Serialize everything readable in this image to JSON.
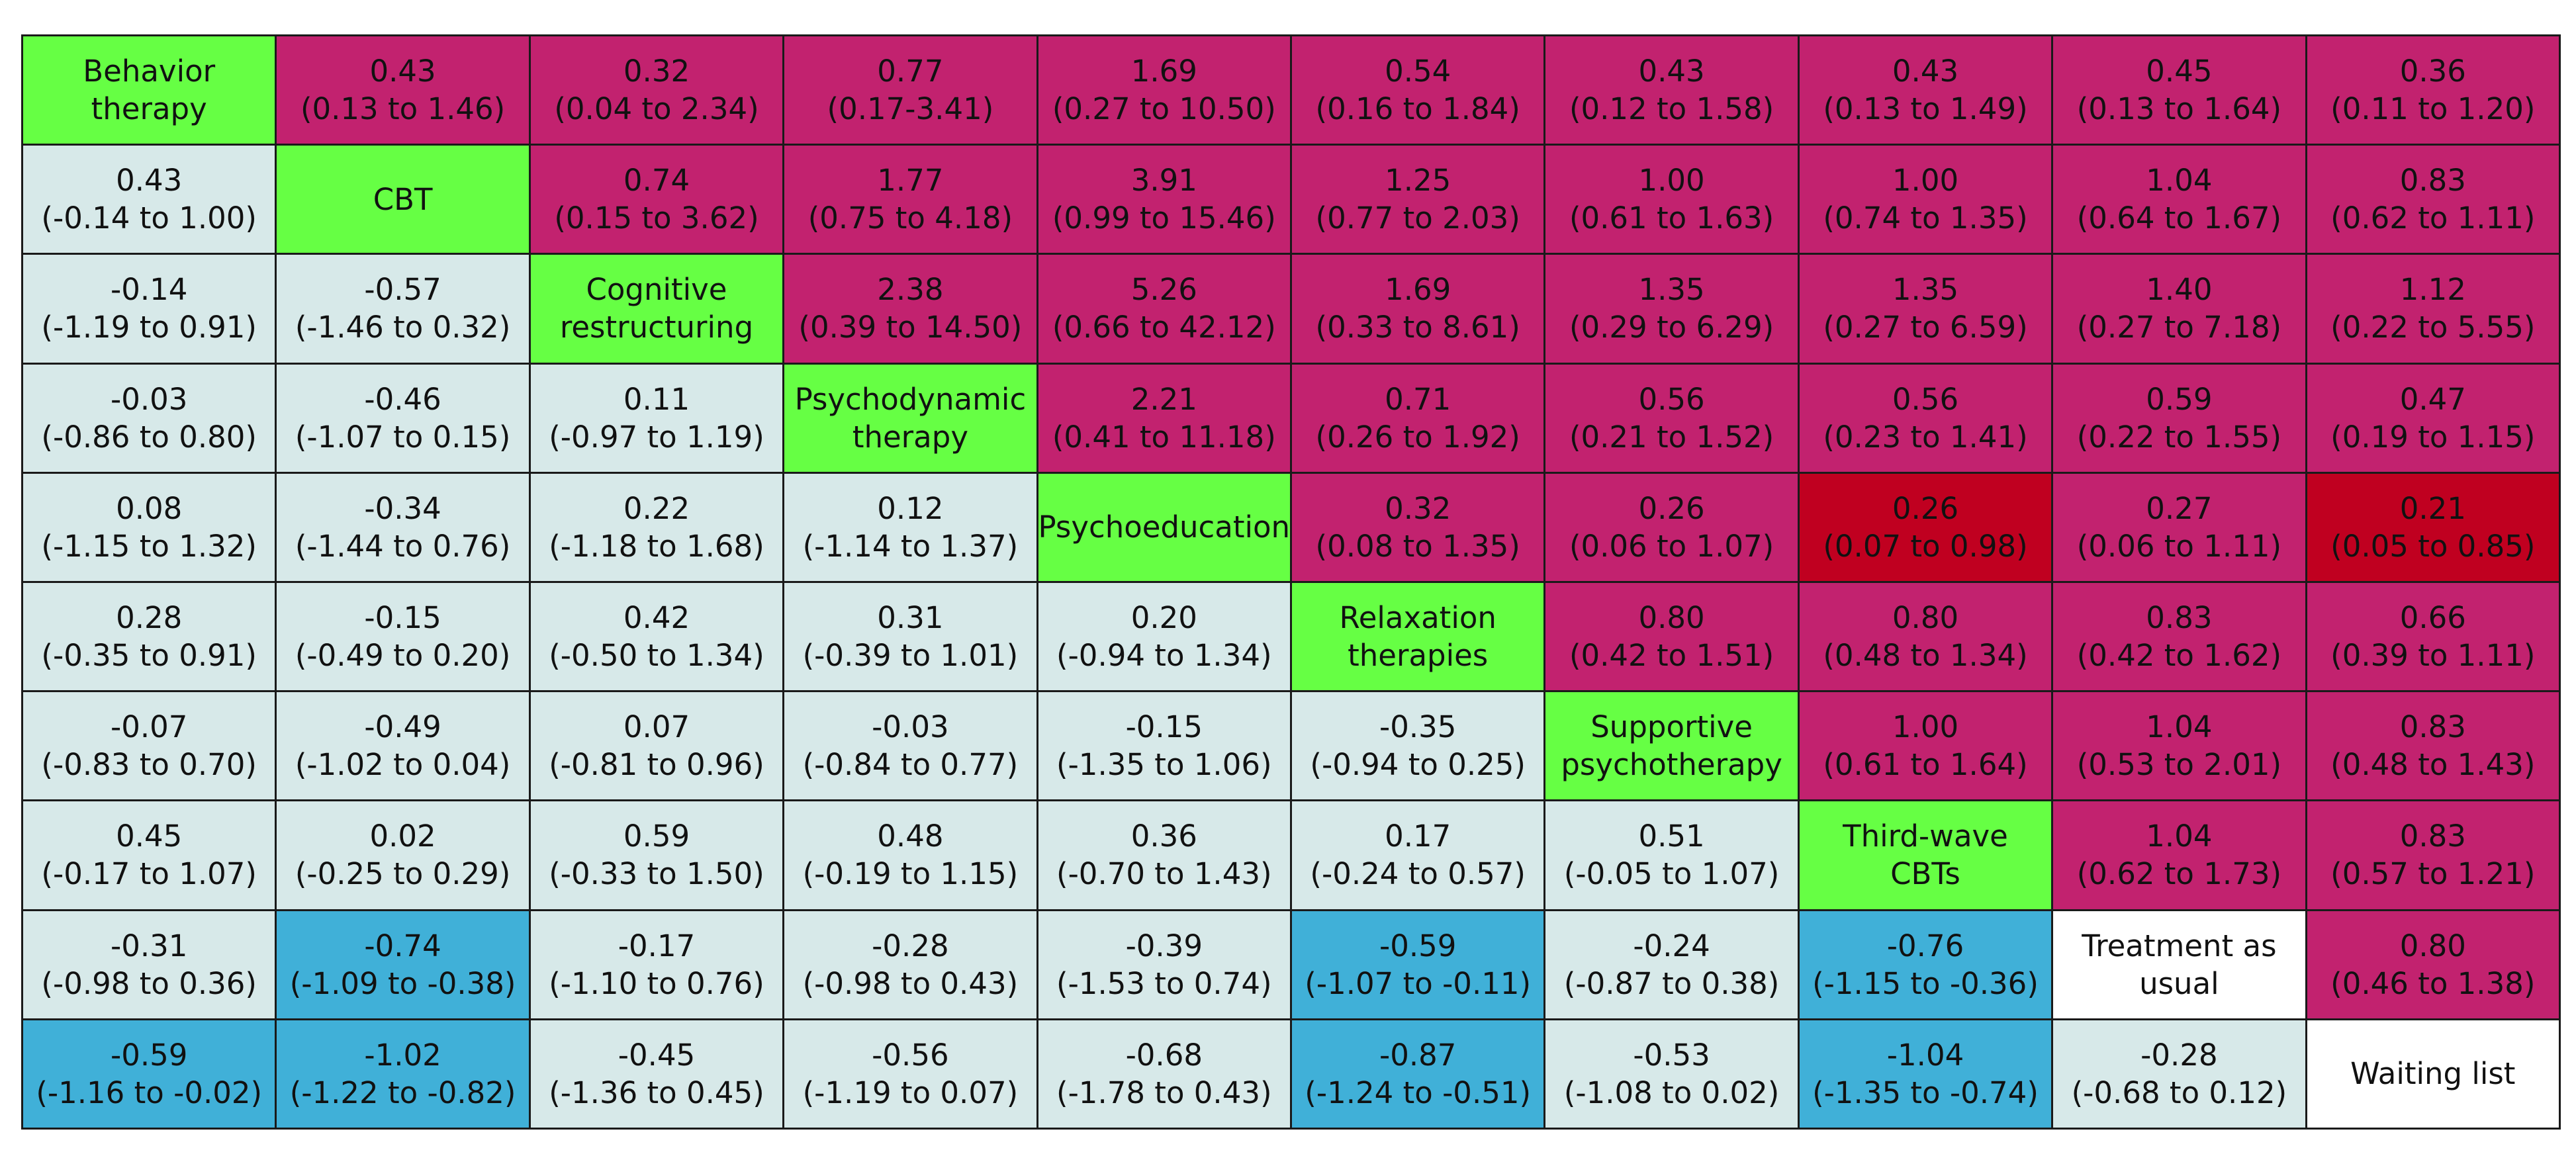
{
  "colors": {
    "diagonal": "#66ff44",
    "upper": "#c2226f",
    "upper_significant": "#c00020",
    "lower": "#d7e9e9",
    "lower_significant": "#40b0d8",
    "reference": "#ffffff"
  },
  "chart_data": {
    "type": "table",
    "treatments": [
      "Behavior therapy",
      "CBT",
      "Cognitive restructuring",
      "Psychodynamic therapy",
      "Psychoeducation",
      "Relaxation therapies",
      "Supportive psychotherapy",
      "Third-wave CBTs",
      "Treatment as usual",
      "Waiting list"
    ],
    "rows": [
      [
        {
          "kind": "diagonal",
          "label": "Behavior therapy"
        },
        {
          "kind": "upper",
          "value": "0.43",
          "ci": "(0.13 to 1.46)"
        },
        {
          "kind": "upper",
          "value": "0.32",
          "ci": "(0.04 to 2.34)"
        },
        {
          "kind": "upper",
          "value": "0.77",
          "ci": "(0.17-3.41)"
        },
        {
          "kind": "upper",
          "value": "1.69",
          "ci": "(0.27 to 10.50)"
        },
        {
          "kind": "upper",
          "value": "0.54",
          "ci": "(0.16 to 1.84)"
        },
        {
          "kind": "upper",
          "value": "0.43",
          "ci": "(0.12 to 1.58)"
        },
        {
          "kind": "upper",
          "value": "0.43",
          "ci": "(0.13 to 1.49)"
        },
        {
          "kind": "upper",
          "value": "0.45",
          "ci": "(0.13 to 1.64)"
        },
        {
          "kind": "upper",
          "value": "0.36",
          "ci": "(0.11 to 1.20)"
        }
      ],
      [
        {
          "kind": "lower",
          "value": "0.43",
          "ci": "(-0.14 to 1.00)"
        },
        {
          "kind": "diagonal",
          "label": "CBT"
        },
        {
          "kind": "upper",
          "value": "0.74",
          "ci": "(0.15 to 3.62)"
        },
        {
          "kind": "upper",
          "value": "1.77",
          "ci": "(0.75 to 4.18)"
        },
        {
          "kind": "upper",
          "value": "3.91",
          "ci": "(0.99 to 15.46)"
        },
        {
          "kind": "upper",
          "value": "1.25",
          "ci": "(0.77 to 2.03)"
        },
        {
          "kind": "upper",
          "value": "1.00",
          "ci": "(0.61 to 1.63)"
        },
        {
          "kind": "upper",
          "value": "1.00",
          "ci": "(0.74 to 1.35)"
        },
        {
          "kind": "upper",
          "value": "1.04",
          "ci": "(0.64 to 1.67)"
        },
        {
          "kind": "upper",
          "value": "0.83",
          "ci": "(0.62 to 1.11)"
        }
      ],
      [
        {
          "kind": "lower",
          "value": "-0.14",
          "ci": "(-1.19 to 0.91)"
        },
        {
          "kind": "lower",
          "value": "-0.57",
          "ci": "(-1.46 to 0.32)"
        },
        {
          "kind": "diagonal",
          "label": "Cognitive restructuring"
        },
        {
          "kind": "upper",
          "value": "2.38",
          "ci": "(0.39 to 14.50)"
        },
        {
          "kind": "upper",
          "value": "5.26",
          "ci": "(0.66 to 42.12)"
        },
        {
          "kind": "upper",
          "value": "1.69",
          "ci": "(0.33 to 8.61)"
        },
        {
          "kind": "upper",
          "value": "1.35",
          "ci": "(0.29 to 6.29)"
        },
        {
          "kind": "upper",
          "value": "1.35",
          "ci": "(0.27 to 6.59)"
        },
        {
          "kind": "upper",
          "value": "1.40",
          "ci": "(0.27 to 7.18)"
        },
        {
          "kind": "upper",
          "value": "1.12",
          "ci": "(0.22 to 5.55)"
        }
      ],
      [
        {
          "kind": "lower",
          "value": "-0.03",
          "ci": "(-0.86 to 0.80)"
        },
        {
          "kind": "lower",
          "value": "-0.46",
          "ci": "(-1.07 to 0.15)"
        },
        {
          "kind": "lower",
          "value": "0.11",
          "ci": "(-0.97 to 1.19)"
        },
        {
          "kind": "diagonal",
          "label": "Psychodynamic therapy"
        },
        {
          "kind": "upper",
          "value": "2.21",
          "ci": "(0.41 to 11.18)"
        },
        {
          "kind": "upper",
          "value": "0.71",
          "ci": "(0.26 to 1.92)"
        },
        {
          "kind": "upper",
          "value": "0.56",
          "ci": "(0.21 to 1.52)"
        },
        {
          "kind": "upper",
          "value": "0.56",
          "ci": "(0.23 to 1.41)"
        },
        {
          "kind": "upper",
          "value": "0.59",
          "ci": "(0.22 to 1.55)"
        },
        {
          "kind": "upper",
          "value": "0.47",
          "ci": "(0.19 to 1.15)"
        }
      ],
      [
        {
          "kind": "lower",
          "value": "0.08",
          "ci": "(-1.15 to 1.32)"
        },
        {
          "kind": "lower",
          "value": "-0.34",
          "ci": "(-1.44 to 0.76)"
        },
        {
          "kind": "lower",
          "value": "0.22",
          "ci": "(-1.18 to 1.68)"
        },
        {
          "kind": "lower",
          "value": "0.12",
          "ci": "(-1.14 to 1.37)"
        },
        {
          "kind": "diagonal",
          "label": "Psychoeducation"
        },
        {
          "kind": "upper",
          "value": "0.32",
          "ci": "(0.08 to 1.35)"
        },
        {
          "kind": "upper",
          "value": "0.26",
          "ci": "(0.06 to 1.07)"
        },
        {
          "kind": "upper_significant",
          "value": "0.26",
          "ci": "(0.07 to 0.98)"
        },
        {
          "kind": "upper",
          "value": "0.27",
          "ci": "(0.06 to 1.11)"
        },
        {
          "kind": "upper_significant",
          "value": "0.21",
          "ci": "(0.05 to 0.85)"
        }
      ],
      [
        {
          "kind": "lower",
          "value": "0.28",
          "ci": "(-0.35 to 0.91)"
        },
        {
          "kind": "lower",
          "value": "-0.15",
          "ci": "(-0.49 to 0.20)"
        },
        {
          "kind": "lower",
          "value": "0.42",
          "ci": "(-0.50 to 1.34)"
        },
        {
          "kind": "lower",
          "value": "0.31",
          "ci": "(-0.39 to 1.01)"
        },
        {
          "kind": "lower",
          "value": "0.20",
          "ci": "(-0.94 to 1.34)"
        },
        {
          "kind": "diagonal",
          "label": "Relaxation therapies"
        },
        {
          "kind": "upper",
          "value": "0.80",
          "ci": "(0.42 to 1.51)"
        },
        {
          "kind": "upper",
          "value": "0.80",
          "ci": "(0.48 to 1.34)"
        },
        {
          "kind": "upper",
          "value": "0.83",
          "ci": "(0.42 to 1.62)"
        },
        {
          "kind": "upper",
          "value": "0.66",
          "ci": "(0.39 to 1.11)"
        }
      ],
      [
        {
          "kind": "lower",
          "value": "-0.07",
          "ci": "(-0.83 to 0.70)"
        },
        {
          "kind": "lower",
          "value": "-0.49",
          "ci": "(-1.02 to 0.04)"
        },
        {
          "kind": "lower",
          "value": "0.07",
          "ci": "(-0.81 to 0.96)"
        },
        {
          "kind": "lower",
          "value": "-0.03",
          "ci": "(-0.84 to 0.77)"
        },
        {
          "kind": "lower",
          "value": "-0.15",
          "ci": "(-1.35 to 1.06)"
        },
        {
          "kind": "lower",
          "value": "-0.35",
          "ci": "(-0.94 to 0.25)"
        },
        {
          "kind": "diagonal",
          "label": "Supportive psychotherapy"
        },
        {
          "kind": "upper",
          "value": "1.00",
          "ci": "(0.61 to 1.64)"
        },
        {
          "kind": "upper",
          "value": "1.04",
          "ci": "(0.53 to 2.01)"
        },
        {
          "kind": "upper",
          "value": "0.83",
          "ci": "(0.48 to 1.43)"
        }
      ],
      [
        {
          "kind": "lower",
          "value": "0.45",
          "ci": "(-0.17 to 1.07)"
        },
        {
          "kind": "lower",
          "value": "0.02",
          "ci": "(-0.25 to 0.29)"
        },
        {
          "kind": "lower",
          "value": "0.59",
          "ci": "(-0.33 to 1.50)"
        },
        {
          "kind": "lower",
          "value": "0.48",
          "ci": "(-0.19 to 1.15)"
        },
        {
          "kind": "lower",
          "value": "0.36",
          "ci": "(-0.70 to 1.43)"
        },
        {
          "kind": "lower",
          "value": "0.17",
          "ci": "(-0.24 to 0.57)"
        },
        {
          "kind": "lower",
          "value": "0.51",
          "ci": "(-0.05 to 1.07)"
        },
        {
          "kind": "diagonal",
          "label": "Third-wave CBTs"
        },
        {
          "kind": "upper",
          "value": "1.04",
          "ci": "(0.62 to 1.73)"
        },
        {
          "kind": "upper",
          "value": "0.83",
          "ci": "(0.57 to 1.21)"
        }
      ],
      [
        {
          "kind": "lower",
          "value": "-0.31",
          "ci": "(-0.98 to 0.36)"
        },
        {
          "kind": "lower_significant",
          "value": "-0.74",
          "ci": "(-1.09 to -0.38)"
        },
        {
          "kind": "lower",
          "value": "-0.17",
          "ci": "(-1.10 to 0.76)"
        },
        {
          "kind": "lower",
          "value": "-0.28",
          "ci": "(-0.98 to 0.43)"
        },
        {
          "kind": "lower",
          "value": "-0.39",
          "ci": "(-1.53 to 0.74)"
        },
        {
          "kind": "lower_significant",
          "value": "-0.59",
          "ci": "(-1.07 to -0.11)"
        },
        {
          "kind": "lower",
          "value": "-0.24",
          "ci": "(-0.87 to 0.38)"
        },
        {
          "kind": "lower_significant",
          "value": "-0.76",
          "ci": "(-1.15 to -0.36)"
        },
        {
          "kind": "reference",
          "label": "Treatment as usual"
        },
        {
          "kind": "upper",
          "value": "0.80",
          "ci": "(0.46 to 1.38)"
        }
      ],
      [
        {
          "kind": "lower_significant",
          "value": "-0.59",
          "ci": "(-1.16 to -0.02)"
        },
        {
          "kind": "lower_significant",
          "value": "-1.02",
          "ci": "(-1.22 to -0.82)"
        },
        {
          "kind": "lower",
          "value": "-0.45",
          "ci": "(-1.36 to 0.45)"
        },
        {
          "kind": "lower",
          "value": "-0.56",
          "ci": "(-1.19 to 0.07)"
        },
        {
          "kind": "lower",
          "value": "-0.68",
          "ci": "(-1.78 to 0.43)"
        },
        {
          "kind": "lower_significant",
          "value": "-0.87",
          "ci": "(-1.24 to -0.51)"
        },
        {
          "kind": "lower",
          "value": "-0.53",
          "ci": "(-1.08 to 0.02)"
        },
        {
          "kind": "lower_significant",
          "value": "-1.04",
          "ci": "(-1.35 to -0.74)"
        },
        {
          "kind": "lower",
          "value": "-0.28",
          "ci": "(-0.68 to 0.12)"
        },
        {
          "kind": "reference",
          "label": "Waiting list"
        }
      ]
    ]
  }
}
